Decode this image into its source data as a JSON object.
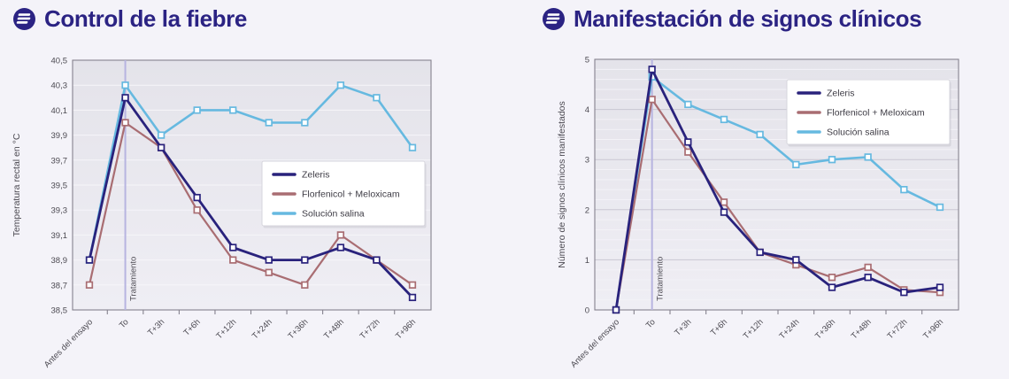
{
  "page": {
    "background_color": "#f4f3f9",
    "title_color": "#2b2383"
  },
  "icons": {
    "logo": "striped-sphere-logo",
    "logo_color": "#2b2383"
  },
  "chart_data": [
    {
      "type": "line",
      "title": "Control de la fiebre",
      "ylabel": "Temperatura rectal en °C",
      "categories": [
        "Antes del ensayo",
        "To",
        "T+3h",
        "T+6h",
        "T+12h",
        "T+24h",
        "T+36h",
        "T+48h",
        "T+72h",
        "T+96h"
      ],
      "series": [
        {
          "name": "Zeleris",
          "color": "#29227c",
          "values": [
            38.9,
            40.2,
            39.8,
            39.4,
            39.0,
            38.9,
            38.9,
            39.0,
            38.9,
            38.6
          ]
        },
        {
          "name": "Florfenicol + Meloxicam",
          "color": "#a96d72",
          "values": [
            38.7,
            40.0,
            39.8,
            39.3,
            38.9,
            38.8,
            38.7,
            39.1,
            38.9,
            38.7
          ]
        },
        {
          "name": "Solución salina",
          "color": "#66b9e0",
          "values": [
            38.9,
            40.3,
            39.9,
            40.1,
            40.1,
            40.0,
            40.0,
            40.3,
            40.2,
            39.8
          ]
        }
      ],
      "ylim": [
        38.5,
        40.5
      ],
      "ytick_step": 0.2,
      "ytick_minor_step": null,
      "ytick_decimals": 1,
      "decimal_comma": true,
      "grid": true,
      "annotation": {
        "label": "Tratamiento",
        "category_index": 1
      },
      "legend_position": "center-right"
    },
    {
      "type": "line",
      "title": "Manifestación de signos clínicos",
      "ylabel": "Número de signos clínicos manifestados",
      "categories": [
        "Antes del ensayo",
        "To",
        "T+3h",
        "T+6h",
        "T+12h",
        "T+24h",
        "T+36h",
        "T+48h",
        "T+72h",
        "T+96h"
      ],
      "series": [
        {
          "name": "Zeleris",
          "color": "#29227c",
          "values": [
            0,
            4.8,
            3.35,
            1.95,
            1.15,
            1.0,
            0.45,
            0.65,
            0.35,
            0.45
          ]
        },
        {
          "name": "Florfenicol + Meloxicam",
          "color": "#a96d72",
          "values": [
            0,
            4.2,
            3.15,
            2.15,
            1.15,
            0.9,
            0.65,
            0.85,
            0.4,
            0.35
          ]
        },
        {
          "name": "Solución salina",
          "color": "#66b9e0",
          "values": [
            0,
            4.65,
            4.1,
            3.8,
            3.5,
            2.9,
            3.0,
            3.05,
            2.4,
            2.05
          ]
        }
      ],
      "ylim": [
        0,
        5
      ],
      "ytick_step": 1,
      "ytick_minor_step": 0.2,
      "ytick_decimals": 0,
      "decimal_comma": false,
      "grid": true,
      "annotation": {
        "label": "Tratamiento",
        "category_index": 1
      },
      "legend_position": "top-right"
    }
  ],
  "style_colors": {
    "plot_bg_top": "#e4e3ea",
    "plot_bg_bottom": "#efeef4",
    "plot_border": "#85828e",
    "grid_major_light": "#f6f5f9",
    "grid_major_dark": "#c9c7d2",
    "grid_minor": "#f3f2f7",
    "treatment_line": "#b7b4e0",
    "axis_text": "#4c4a52",
    "legend_text": "#3d3b44",
    "legend_border": "#d6d5dc"
  }
}
